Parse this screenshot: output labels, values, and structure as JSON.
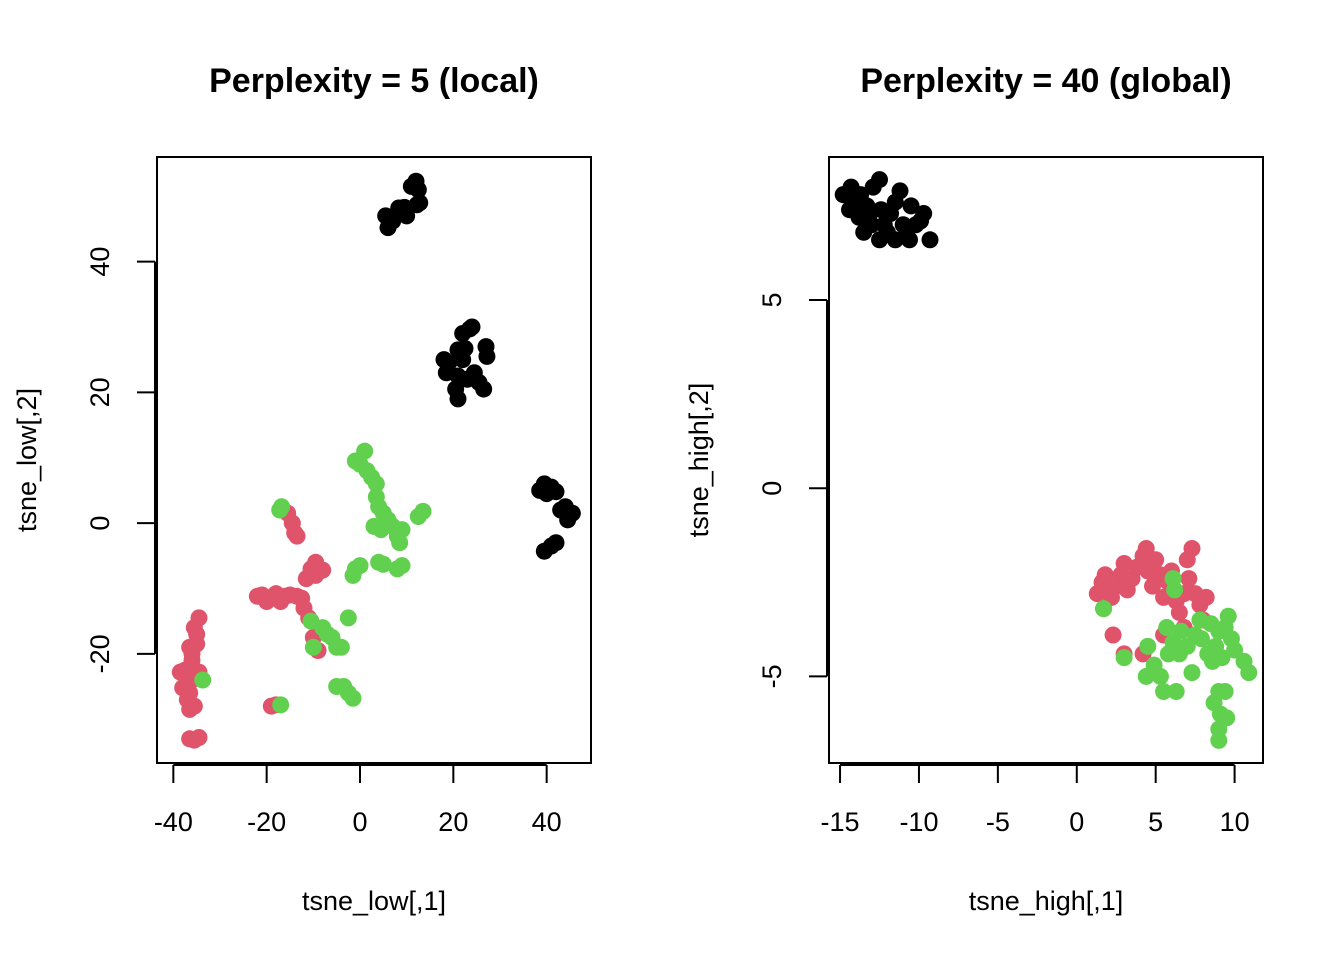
{
  "colors": {
    "group1": "#000000",
    "group2": "#DF536B",
    "group3": "#61D04F"
  },
  "chart_data": [
    {
      "type": "scatter",
      "title": "Perplexity = 5 (local)",
      "xlabel": "tsne_low[,1]",
      "ylabel": "tsne_low[,2]",
      "xlim": [
        -43.5,
        49.5
      ],
      "ylim": [
        -36.7,
        56
      ],
      "xticks": [
        -40,
        -20,
        0,
        20,
        40
      ],
      "xtick_labels": [
        "-40",
        "-20",
        "0",
        "20",
        "40"
      ],
      "yticks": [
        -20,
        0,
        20,
        40
      ],
      "ytick_labels": [
        "-20",
        "0",
        "20",
        "40"
      ],
      "grid": false,
      "legend": "none",
      "series": [
        {
          "name": "group1",
          "color": "#000000",
          "points": [
            [
              5.5,
              47
            ],
            [
              6,
              45.2
            ],
            [
              7,
              46.2
            ],
            [
              8.5,
              47.5
            ],
            [
              9.5,
              48.3
            ],
            [
              10,
              47
            ],
            [
              11,
              51.5
            ],
            [
              12,
              52.3
            ],
            [
              12.5,
              51
            ],
            [
              12.8,
              49
            ],
            [
              12.2,
              48.7
            ],
            [
              8.3,
              48.2
            ],
            [
              18,
              25
            ],
            [
              18.5,
              23
            ],
            [
              19,
              24.5
            ],
            [
              20.5,
              20.5
            ],
            [
              21,
              19
            ],
            [
              21,
              26.5
            ],
            [
              22,
              25
            ],
            [
              22,
              29
            ],
            [
              23,
              22
            ],
            [
              23.5,
              29.7
            ],
            [
              24,
              30
            ],
            [
              24.5,
              23
            ],
            [
              25.5,
              21.5
            ],
            [
              26.5,
              20.5
            ],
            [
              27,
              27
            ],
            [
              27.2,
              25.5
            ],
            [
              22.5,
              26.7
            ],
            [
              21,
              22.5
            ],
            [
              38.5,
              5
            ],
            [
              39.5,
              6
            ],
            [
              40,
              4.5
            ],
            [
              41,
              5.5
            ],
            [
              42,
              4.8
            ],
            [
              43,
              2
            ],
            [
              44,
              2.5
            ],
            [
              44.5,
              0.5
            ],
            [
              45.5,
              1.5
            ],
            [
              39.5,
              -4.3
            ],
            [
              41,
              -3.5
            ],
            [
              42,
              -3
            ]
          ]
        },
        {
          "name": "group2",
          "color": "#DF536B",
          "points": [
            [
              -38.5,
              -22.8
            ],
            [
              -37.5,
              -22.5
            ],
            [
              -38,
              -25.2
            ],
            [
              -37,
              -27
            ],
            [
              -36.5,
              -28.5
            ],
            [
              -35.5,
              -28
            ],
            [
              -36.5,
              -26
            ],
            [
              -36,
              -24
            ],
            [
              -35,
              -23
            ],
            [
              -36.5,
              -19
            ],
            [
              -36,
              -20
            ],
            [
              -35,
              -17
            ],
            [
              -35.5,
              -16
            ],
            [
              -34.5,
              -14.5
            ],
            [
              -35,
              -18.5
            ],
            [
              -34.5,
              -22.8
            ],
            [
              -36.5,
              -33
            ],
            [
              -35.5,
              -33.2
            ],
            [
              -34.5,
              -32.8
            ],
            [
              -36,
              -21
            ],
            [
              -19,
              -28
            ],
            [
              -18,
              -27.8
            ],
            [
              -16.5,
              2
            ],
            [
              -15.5,
              1.5
            ],
            [
              -14.5,
              0
            ],
            [
              -14,
              -1.5
            ],
            [
              -13.5,
              -2
            ],
            [
              -22,
              -11.2
            ],
            [
              -21,
              -11
            ],
            [
              -20,
              -12
            ],
            [
              -19,
              -11.5
            ],
            [
              -18,
              -10.8
            ],
            [
              -17,
              -12
            ],
            [
              -16,
              -11.2
            ],
            [
              -15,
              -11
            ],
            [
              -13.5,
              -11.2
            ],
            [
              -12.5,
              -11.5
            ],
            [
              -12,
              -13
            ],
            [
              -11.5,
              -8.5
            ],
            [
              -10.5,
              -7
            ],
            [
              -9.5,
              -6
            ],
            [
              -8,
              -7.2
            ],
            [
              -9.5,
              -8
            ],
            [
              -11,
              -14.5
            ],
            [
              -10,
              -17.5
            ],
            [
              -9,
              -19.5
            ]
          ]
        },
        {
          "name": "group3",
          "color": "#61D04F",
          "points": [
            [
              -33.7,
              -24
            ],
            [
              -17,
              -27.8
            ],
            [
              -17.2,
              2
            ],
            [
              -16.8,
              2.5
            ],
            [
              -10.5,
              -15
            ],
            [
              -10,
              -19
            ],
            [
              -8,
              -16
            ],
            [
              -7,
              -17
            ],
            [
              -6,
              -17.5
            ],
            [
              -5,
              -19
            ],
            [
              -4,
              -19
            ],
            [
              -2.5,
              -14.5
            ],
            [
              -5,
              -25
            ],
            [
              -3.5,
              -25
            ],
            [
              -2.5,
              -26
            ],
            [
              -1.5,
              -26.8
            ],
            [
              -1.5,
              -8
            ],
            [
              -1,
              -7
            ],
            [
              0,
              -6.5
            ],
            [
              4,
              -6
            ],
            [
              5,
              -6.3
            ],
            [
              8,
              -7
            ],
            [
              9,
              -6.5
            ],
            [
              -1,
              9.5
            ],
            [
              0,
              9
            ],
            [
              1,
              11
            ],
            [
              1.5,
              8
            ],
            [
              2.5,
              7
            ],
            [
              3.5,
              6
            ],
            [
              3.5,
              4
            ],
            [
              4,
              2.5
            ],
            [
              5,
              1.5
            ],
            [
              3,
              -0.5
            ],
            [
              4.5,
              -1
            ],
            [
              6,
              0.5
            ],
            [
              7,
              -0.5
            ],
            [
              8,
              -2
            ],
            [
              9,
              -1
            ],
            [
              8.5,
              -3
            ],
            [
              12.5,
              1
            ],
            [
              13.5,
              1.8
            ]
          ]
        }
      ]
    },
    {
      "type": "scatter",
      "title": "Perplexity = 40 (global)",
      "xlabel": "tsne_high[,1]",
      "ylabel": "tsne_high[,2]",
      "xlim": [
        -15.7,
        11.8
      ],
      "ylim": [
        -7.3,
        8.8
      ],
      "xticks": [
        -15,
        -10,
        -5,
        0,
        5,
        10
      ],
      "xtick_labels": [
        "-15",
        "-10",
        "-5",
        "0",
        "5",
        "10"
      ],
      "yticks": [
        -5,
        0,
        5
      ],
      "ytick_labels": [
        "-5",
        "0",
        "5"
      ],
      "grid": false,
      "legend": "none",
      "series": [
        {
          "name": "group1",
          "color": "#000000",
          "points": [
            [
              -14.8,
              7.8
            ],
            [
              -14.3,
              8
            ],
            [
              -14.4,
              7.4
            ],
            [
              -13.8,
              7.2
            ],
            [
              -13.7,
              7.8
            ],
            [
              -13.3,
              7.5
            ],
            [
              -13,
              7.0
            ],
            [
              -12.9,
              8.0
            ],
            [
              -12.5,
              8.2
            ],
            [
              -12.4,
              7.4
            ],
            [
              -12.2,
              7.0
            ],
            [
              -12.5,
              6.6
            ],
            [
              -12.0,
              6.8
            ],
            [
              -11.8,
              7.3
            ],
            [
              -11.5,
              7.6
            ],
            [
              -11.2,
              7.9
            ],
            [
              -11.0,
              7.0
            ],
            [
              -10.8,
              6.7
            ],
            [
              -10.5,
              7.5
            ],
            [
              -10.2,
              7.0
            ],
            [
              -10.6,
              6.6
            ],
            [
              -9.9,
              7.1
            ],
            [
              -9.7,
              7.3
            ],
            [
              -13.5,
              6.8
            ],
            [
              -14.0,
              7.6
            ],
            [
              -11.5,
              6.6
            ],
            [
              -9.3,
              6.6
            ],
            [
              -13.2,
              7.2
            ]
          ]
        },
        {
          "name": "group2",
          "color": "#DF536B",
          "points": [
            [
              1.3,
              -2.8
            ],
            [
              1.6,
              -2.5
            ],
            [
              1.8,
              -2.3
            ],
            [
              2.0,
              -2.7
            ],
            [
              2.2,
              -2.9
            ],
            [
              2.5,
              -2.6
            ],
            [
              2.8,
              -2.3
            ],
            [
              3.0,
              -2.0
            ],
            [
              3.2,
              -2.7
            ],
            [
              3.5,
              -2.4
            ],
            [
              3.8,
              -2.1
            ],
            [
              4.2,
              -1.8
            ],
            [
              4.4,
              -1.6
            ],
            [
              4.5,
              -2.2
            ],
            [
              4.8,
              -2.6
            ],
            [
              5.0,
              -1.9
            ],
            [
              5.3,
              -2.3
            ],
            [
              5.5,
              -2.9
            ],
            [
              5.8,
              -2.5
            ],
            [
              6.0,
              -2.2
            ],
            [
              6.3,
              -3.0
            ],
            [
              6.5,
              -3.3
            ],
            [
              6.8,
              -2.8
            ],
            [
              7.1,
              -2.4
            ],
            [
              7.3,
              -1.6
            ],
            [
              7.0,
              -1.9
            ],
            [
              7.5,
              -2.8
            ],
            [
              7.8,
              -3.1
            ],
            [
              8.2,
              -2.9
            ],
            [
              1.7,
              -3.2
            ],
            [
              2.3,
              -3.9
            ],
            [
              3.0,
              -4.4
            ],
            [
              4.2,
              -4.4
            ],
            [
              5.5,
              -3.9
            ],
            [
              6.8,
              -3.7
            ],
            [
              8.0,
              -3.5
            ]
          ]
        },
        {
          "name": "group3",
          "color": "#61D04F",
          "points": [
            [
              1.7,
              -3.2
            ],
            [
              3.0,
              -4.5
            ],
            [
              4.5,
              -4.2
            ],
            [
              4.4,
              -5.0
            ],
            [
              4.9,
              -4.7
            ],
            [
              5.3,
              -5.0
            ],
            [
              5.5,
              -5.4
            ],
            [
              5.8,
              -4.4
            ],
            [
              5.7,
              -3.7
            ],
            [
              6.1,
              -4.1
            ],
            [
              6.3,
              -5.4
            ],
            [
              6.5,
              -4.4
            ],
            [
              6.6,
              -3.8
            ],
            [
              6.1,
              -2.4
            ],
            [
              6.2,
              -2.7
            ],
            [
              7.0,
              -4.2
            ],
            [
              7.3,
              -4.9
            ],
            [
              7.5,
              -3.9
            ],
            [
              7.8,
              -3.5
            ],
            [
              7.9,
              -4.0
            ],
            [
              8.3,
              -4.4
            ],
            [
              8.5,
              -3.6
            ],
            [
              8.6,
              -4.6
            ],
            [
              8.8,
              -4.2
            ],
            [
              9.0,
              -3.8
            ],
            [
              9.2,
              -4.5
            ],
            [
              9.6,
              -3.4
            ],
            [
              9.4,
              -3.7
            ],
            [
              9.8,
              -4.0
            ],
            [
              10.0,
              -4.3
            ],
            [
              10.6,
              -4.6
            ],
            [
              10.9,
              -4.9
            ],
            [
              9.0,
              -5.4
            ],
            [
              9.4,
              -5.4
            ],
            [
              8.7,
              -5.7
            ],
            [
              9.1,
              -6.0
            ],
            [
              9.5,
              -6.1
            ],
            [
              9.0,
              -6.4
            ],
            [
              9.0,
              -6.7
            ]
          ]
        }
      ]
    }
  ]
}
